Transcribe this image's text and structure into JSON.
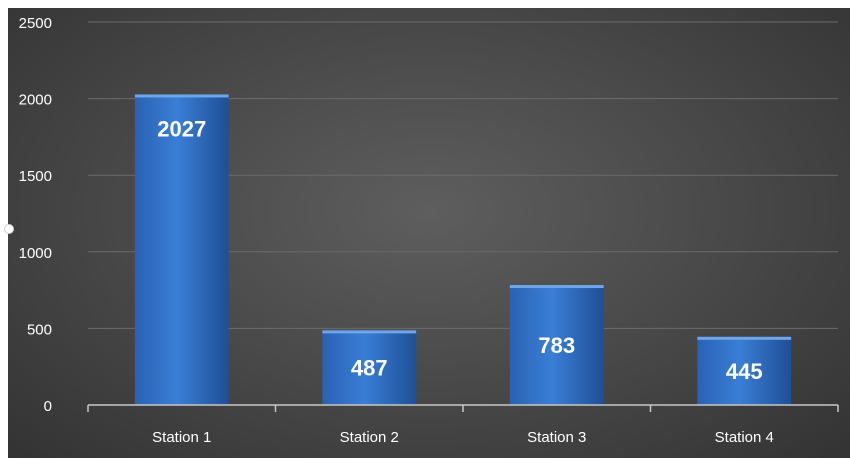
{
  "chart_data": {
    "type": "bar",
    "categories": [
      "Station 1",
      "Station 2",
      "Station 3",
      "Station 4"
    ],
    "values": [
      2027,
      487,
      783,
      445
    ],
    "data_labels": [
      "2027",
      "487",
      "783",
      "445"
    ],
    "title": "",
    "xlabel": "",
    "ylabel": "",
    "ylim": [
      0,
      2500
    ],
    "yticks": [
      "0",
      "500",
      "1000",
      "1500",
      "2000",
      "2500"
    ],
    "ytick_values": [
      0,
      500,
      1000,
      1500,
      2000,
      2500
    ],
    "grid": true,
    "legend": "none",
    "bar_color": "#2f6fc6",
    "background_color": "#4a4a4a"
  }
}
